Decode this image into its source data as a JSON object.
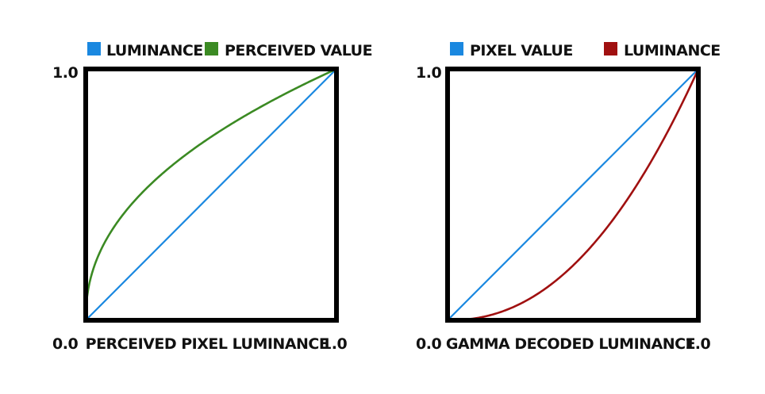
{
  "chart_data": [
    {
      "type": "line",
      "xlabel": "PERCEIVED PIXEL LUMINANCE",
      "xlim": [
        0.0,
        1.0
      ],
      "ylim": [
        0.0,
        1.0
      ],
      "x_tick_labels": [
        "0.0",
        "1.0"
      ],
      "y_tick_labels": [
        "1.0"
      ],
      "grid": false,
      "legend_position": "top",
      "series": [
        {
          "name": "LUMINANCE",
          "color": "#1a88e0",
          "function": "linear",
          "x": [
            0,
            0.25,
            0.5,
            0.75,
            1
          ],
          "y": [
            0,
            0.25,
            0.5,
            0.75,
            1
          ]
        },
        {
          "name": "PERCEIVED VALUE",
          "color": "#3b8a23",
          "function": "power",
          "exponent": 0.4545,
          "x": [
            0,
            0.1,
            0.25,
            0.5,
            0.75,
            1
          ],
          "y": [
            0,
            0.35,
            0.53,
            0.73,
            0.88,
            1
          ]
        }
      ]
    },
    {
      "type": "line",
      "xlabel": "GAMMA DECODED LUMINANCE",
      "xlim": [
        0.0,
        1.0
      ],
      "ylim": [
        0.0,
        1.0
      ],
      "x_tick_labels": [
        "0.0",
        "1.0"
      ],
      "y_tick_labels": [
        "1.0"
      ],
      "grid": false,
      "legend_position": "top",
      "series": [
        {
          "name": "PIXEL VALUE",
          "color": "#1a88e0",
          "function": "linear",
          "x": [
            0,
            0.25,
            0.5,
            0.75,
            1
          ],
          "y": [
            0,
            0.25,
            0.5,
            0.75,
            1
          ]
        },
        {
          "name": "LUMINANCE",
          "color": "#a01010",
          "function": "power",
          "exponent": 2.2,
          "x": [
            0,
            0.25,
            0.5,
            0.75,
            1
          ],
          "y": [
            0,
            0.05,
            0.22,
            0.53,
            1
          ]
        }
      ]
    }
  ]
}
